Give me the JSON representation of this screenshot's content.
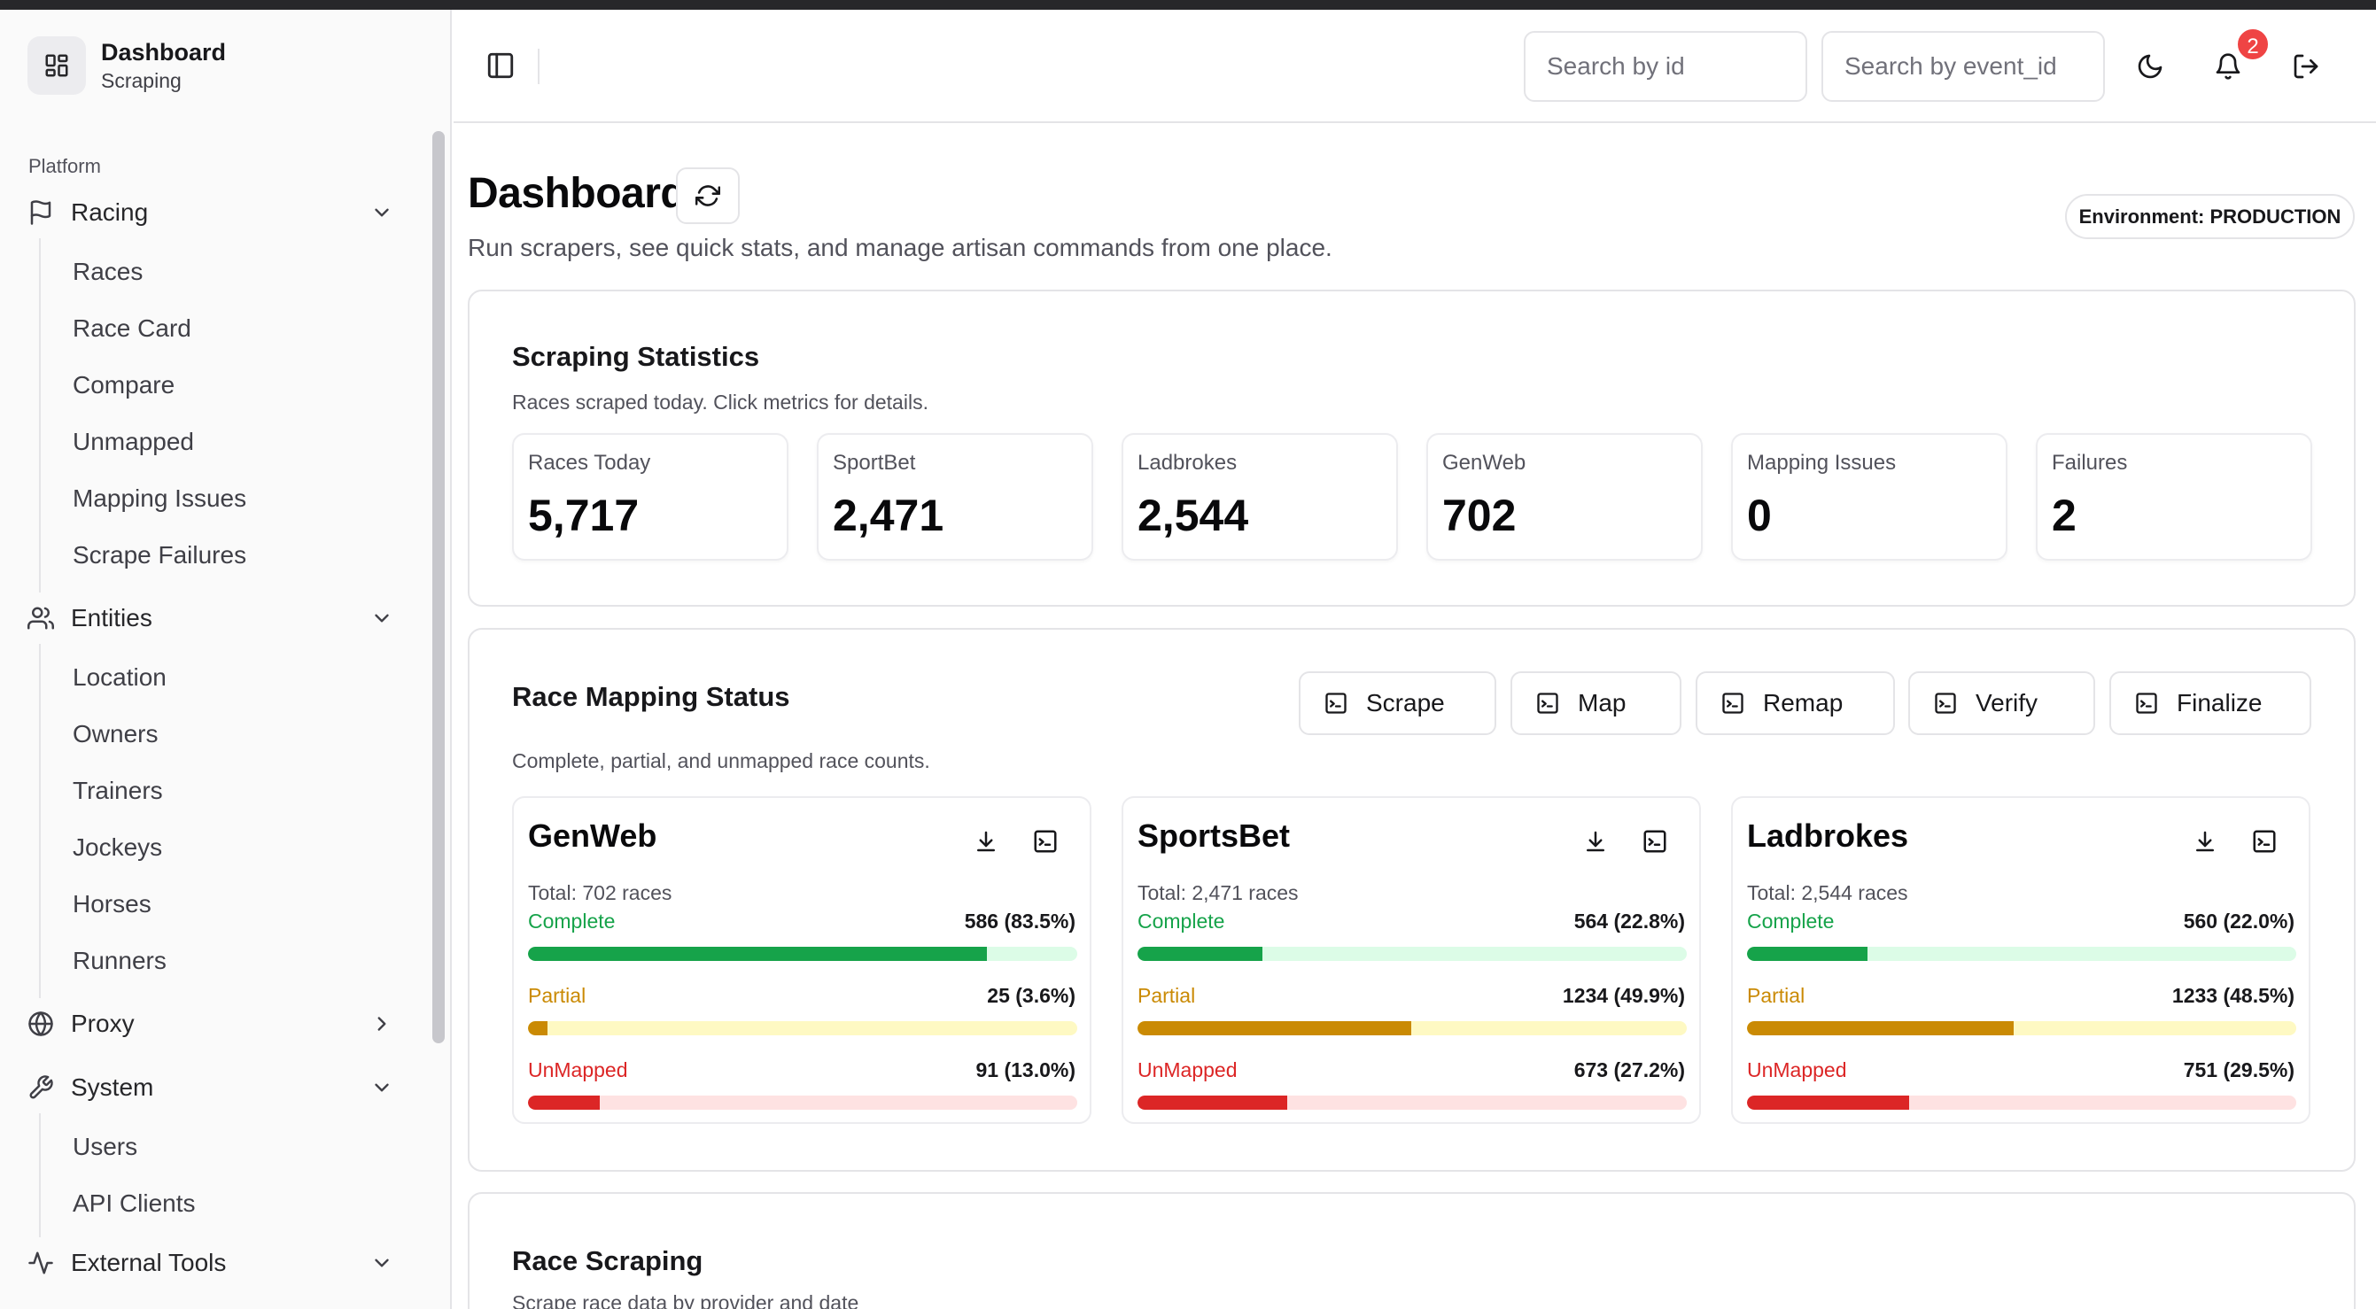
{
  "brand": {
    "title": "Dashboard",
    "subtitle": "Scraping"
  },
  "sidebar": {
    "section_label": "Platform",
    "groups": [
      {
        "label": "Racing",
        "icon": "flag-icon",
        "expanded": true,
        "items": [
          "Races",
          "Race Card",
          "Compare",
          "Unmapped",
          "Mapping Issues",
          "Scrape Failures"
        ]
      },
      {
        "label": "Entities",
        "icon": "users-icon",
        "expanded": true,
        "items": [
          "Location",
          "Owners",
          "Trainers",
          "Jockeys",
          "Horses",
          "Runners"
        ]
      },
      {
        "label": "Proxy",
        "icon": "globe-icon",
        "expanded": false,
        "items": []
      },
      {
        "label": "System",
        "icon": "wrench-icon",
        "expanded": true,
        "items": [
          "Users",
          "API Clients"
        ]
      },
      {
        "label": "External Tools",
        "icon": "activity-icon",
        "expanded": true,
        "items": []
      }
    ]
  },
  "header": {
    "search_id_placeholder": "Search by id",
    "search_event_placeholder": "Search by event_id",
    "notification_count": "2"
  },
  "main": {
    "title": "Dashboard",
    "subtitle": "Run scrapers, see quick stats, and manage artisan commands from one place.",
    "environment": "Environment: PRODUCTION"
  },
  "stats_card": {
    "title": "Scraping Statistics",
    "desc": "Races scraped today. Click metrics for details.",
    "stats": [
      {
        "label": "Races Today",
        "value": "5,717"
      },
      {
        "label": "SportBet",
        "value": "2,471"
      },
      {
        "label": "Ladbrokes",
        "value": "2,544"
      },
      {
        "label": "GenWeb",
        "value": "702"
      },
      {
        "label": "Mapping Issues",
        "value": "0"
      },
      {
        "label": "Failures",
        "value": "2"
      }
    ]
  },
  "mapping_card": {
    "title": "Race Mapping Status",
    "desc": "Complete, partial, and unmapped race counts.",
    "actions": [
      "Scrape",
      "Map",
      "Remap",
      "Verify",
      "Finalize"
    ],
    "row_labels": {
      "complete": "Complete",
      "partial": "Partial",
      "unmapped": "UnMapped"
    },
    "colors": {
      "complete": "#16a34a",
      "complete_track": "#dcfce7",
      "partial": "#ca8a04",
      "partial_track": "#fef9c3",
      "unmapped": "#dc2626",
      "unmapped_track": "#fee2e2"
    },
    "providers": [
      {
        "name": "GenWeb",
        "total": "Total: 702 races",
        "complete": "586 (83.5%)",
        "complete_pct": 83.5,
        "partial": "25 (3.6%)",
        "partial_pct": 3.6,
        "unmapped": "91 (13.0%)",
        "unmapped_pct": 13.0
      },
      {
        "name": "SportsBet",
        "total": "Total: 2,471 races",
        "complete": "564 (22.8%)",
        "complete_pct": 22.8,
        "partial": "1234 (49.9%)",
        "partial_pct": 49.9,
        "unmapped": "673 (27.2%)",
        "unmapped_pct": 27.2
      },
      {
        "name": "Ladbrokes",
        "total": "Total: 2,544 races",
        "complete": "560 (22.0%)",
        "complete_pct": 22.0,
        "partial": "1233 (48.5%)",
        "partial_pct": 48.5,
        "unmapped": "751 (29.5%)",
        "unmapped_pct": 29.5
      }
    ]
  },
  "race_scraping_card": {
    "title": "Race Scraping",
    "desc": "Scrape race data by provider and date"
  }
}
